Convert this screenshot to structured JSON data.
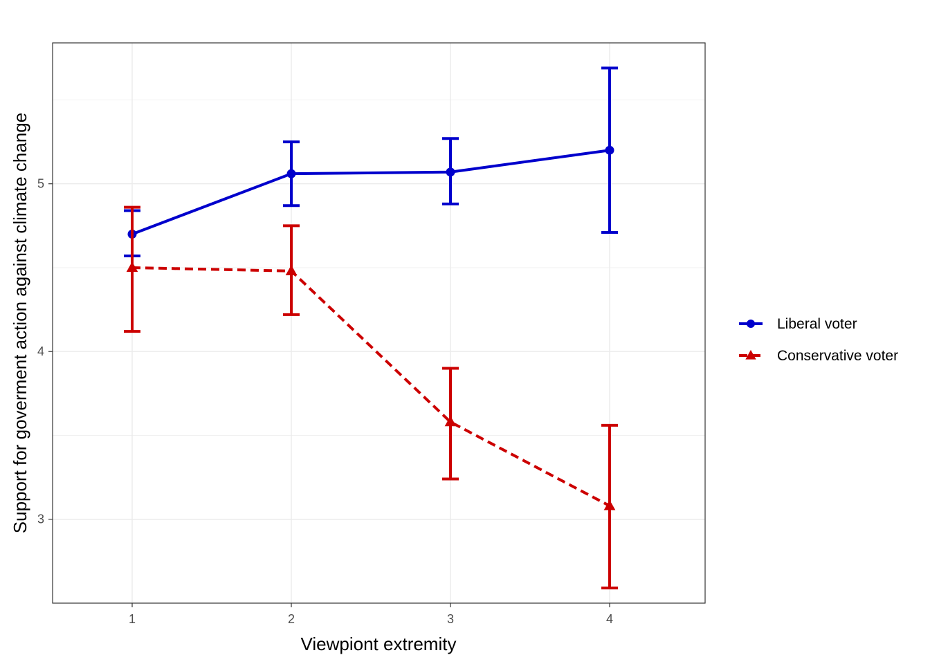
{
  "chart_data": {
    "type": "line",
    "title": "",
    "xlabel": "Viewpiont extremity",
    "ylabel": "Support for goverment action against climate change",
    "x": [
      1,
      2,
      3,
      4
    ],
    "x_tick_labels": [
      "1",
      "2",
      "3",
      "4"
    ],
    "xlim": [
      0.5,
      4.6
    ],
    "y_ticks": [
      3,
      4,
      5
    ],
    "y_tick_labels": [
      "3",
      "4",
      "5"
    ],
    "ylim": [
      2.5,
      5.84
    ],
    "grid": true,
    "legend_position": "right",
    "series": [
      {
        "name": "Liberal voter",
        "color": "#0000CC",
        "marker": "circle",
        "line_style": "solid",
        "values": [
          4.7,
          5.06,
          5.07,
          5.2
        ],
        "error_low": [
          4.57,
          4.87,
          4.88,
          4.71
        ],
        "error_high": [
          4.84,
          5.25,
          5.27,
          5.69
        ]
      },
      {
        "name": "Conservative voter",
        "color": "#CC0000",
        "marker": "triangle",
        "line_style": "dashed",
        "values": [
          4.5,
          4.48,
          3.58,
          3.08
        ],
        "error_low": [
          4.12,
          4.22,
          3.24,
          2.59
        ],
        "error_high": [
          4.86,
          4.75,
          3.9,
          3.56
        ]
      }
    ]
  }
}
